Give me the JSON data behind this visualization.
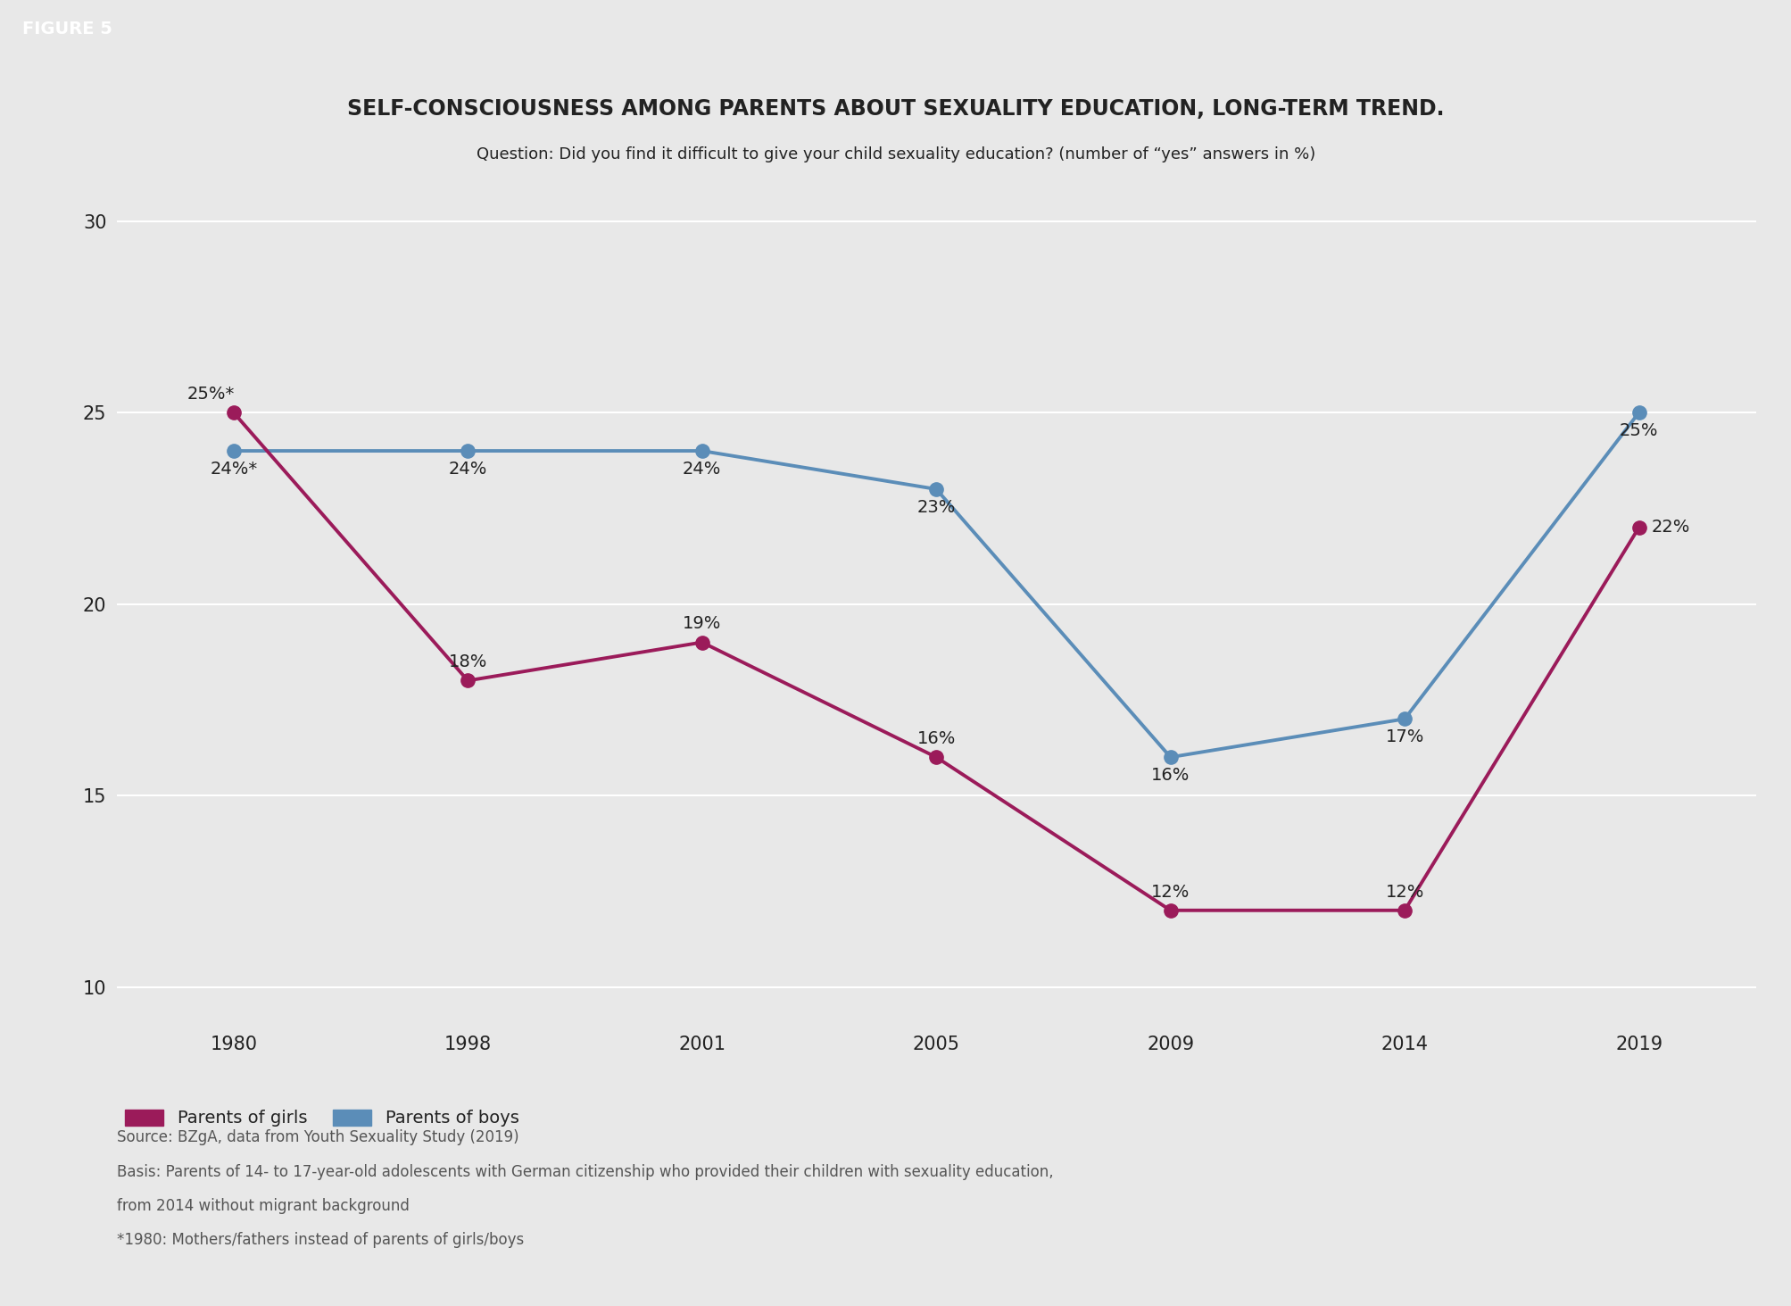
{
  "title": "SELF-CONSCIOUSNESS AMONG PARENTS ABOUT SEXUALITY EDUCATION, LONG-TERM TREND.",
  "subtitle": "Question: Did you find it difficult to give your child sexuality education? (number of “yes” answers in %)",
  "figure_label": "FIGURE 5",
  "years": [
    "1980",
    "1998",
    "2001",
    "2005",
    "2009",
    "2014",
    "2019"
  ],
  "girls_values": [
    25,
    18,
    19,
    16,
    12,
    12,
    22
  ],
  "boys_values": [
    24,
    24,
    24,
    23,
    16,
    17,
    25
  ],
  "girls_labels": [
    "25%*",
    "18%",
    "19%",
    "16%",
    "12%",
    "12%",
    "22%"
  ],
  "boys_labels": [
    "24%*",
    "24%",
    "24%",
    "23%",
    "16%",
    "17%",
    "25%"
  ],
  "girls_label_pos": [
    [
      "center",
      "bottom",
      -18,
      8
    ],
    [
      "center",
      "bottom",
      0,
      8
    ],
    [
      "center",
      "bottom",
      0,
      8
    ],
    [
      "center",
      "bottom",
      0,
      8
    ],
    [
      "center",
      "bottom",
      0,
      8
    ],
    [
      "center",
      "bottom",
      0,
      8
    ],
    [
      "left",
      "center",
      10,
      0
    ]
  ],
  "boys_label_pos": [
    [
      "center",
      "top",
      0,
      -8
    ],
    [
      "center",
      "top",
      0,
      -8
    ],
    [
      "center",
      "top",
      0,
      -8
    ],
    [
      "center",
      "top",
      0,
      -8
    ],
    [
      "center",
      "top",
      0,
      -8
    ],
    [
      "center",
      "top",
      0,
      -8
    ],
    [
      "center",
      "top",
      0,
      -8
    ]
  ],
  "girls_color": "#9B1B5A",
  "boys_color": "#5B8DB8",
  "ylim": [
    9.0,
    31.0
  ],
  "yticks": [
    10,
    15,
    20,
    25,
    30
  ],
  "background_color": "#E8E8E8",
  "plot_bg_color": "#E8E8E8",
  "legend_girls": "Parents of girls",
  "legend_boys": "Parents of boys",
  "source_line1": "Source: BZgA, data from Youth Sexuality Study (2019)",
  "source_line2": "Basis: Parents of 14- to 17-year-old adolescents with German citizenship who provided their children with sexuality education,",
  "source_line3": "from 2014 without migrant background",
  "source_line4": "*1980: Mothers/fathers instead of parents of girls/boys",
  "title_fontsize": 17,
  "subtitle_fontsize": 13,
  "label_fontsize": 14,
  "tick_fontsize": 15,
  "legend_fontsize": 14,
  "source_fontsize": 12,
  "line_width": 2.8,
  "marker_size": 11,
  "grid_color": "#FFFFFF",
  "text_color": "#222222",
  "source_color": "#555555"
}
